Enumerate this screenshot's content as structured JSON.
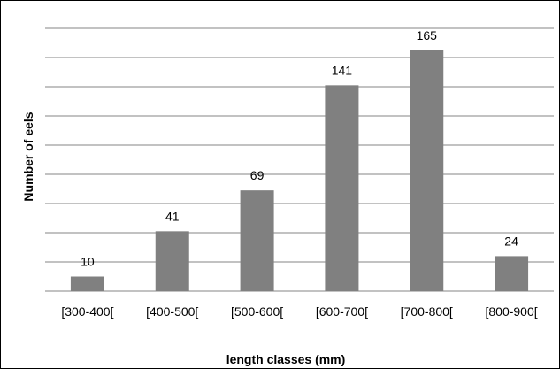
{
  "chart_data": {
    "type": "bar",
    "title": "",
    "xlabel": "length classes (mm)",
    "ylabel": "Number of eels",
    "categories": [
      "[300-400[",
      "[400-500[",
      "[500-600[",
      "[600-700[",
      "[700-800[",
      "[800-900["
    ],
    "values": [
      10,
      41,
      69,
      141,
      165,
      24
    ],
    "data_labels": [
      "10",
      "41",
      "69",
      "141",
      "165",
      "24"
    ],
    "ylim": [
      0,
      180
    ],
    "y_tick_step": 20,
    "y_tick_labels_shown": false,
    "grid": true,
    "legend": "none",
    "bar_color": "#808080",
    "grid_color": "#868686"
  }
}
